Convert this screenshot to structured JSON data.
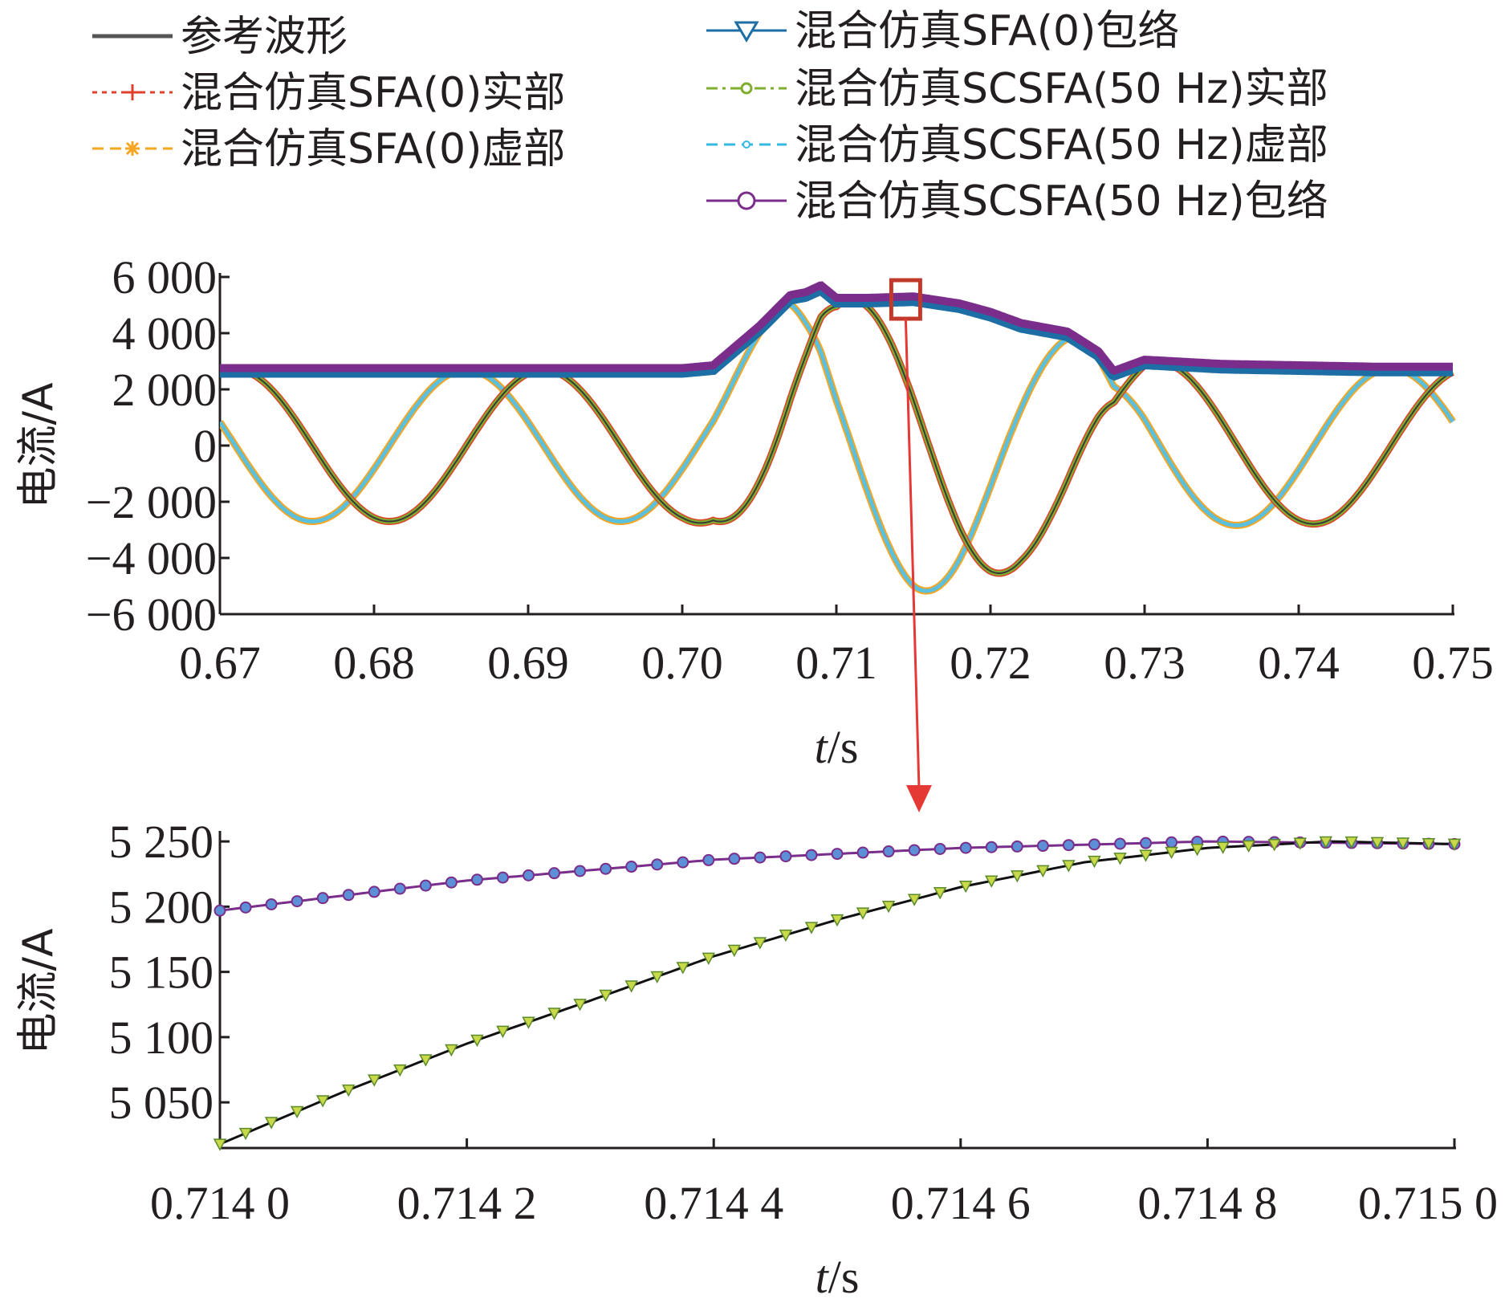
{
  "legend": [
    {
      "label": "参考波形",
      "color": "#555555",
      "marker": "none",
      "dash": "solid"
    },
    {
      "label": "混合仿真SFA(0)实部",
      "color": "#e0402a",
      "marker": "plus",
      "dash": "dotted"
    },
    {
      "label": "混合仿真SFA(0)虚部",
      "color": "#f5a623",
      "marker": "asterisk",
      "dash": "dashed"
    },
    {
      "label": "混合仿真SFA(0)包络",
      "color": "#1c6ea4",
      "marker": "triangle-down",
      "dash": "solid"
    },
    {
      "label": "混合仿真SCSFA(50 Hz)实部",
      "color": "#7fae2e",
      "marker": "circle-small",
      "dash": "dashdot"
    },
    {
      "label": "混合仿真SCSFA(50 Hz)虚部",
      "color": "#35b9e0",
      "marker": "dot",
      "dash": "dashed"
    },
    {
      "label": "混合仿真SCSFA(50 Hz)包络",
      "color": "#7b2d8b",
      "marker": "circle",
      "dash": "solid"
    }
  ],
  "colors": {
    "reference": "#3a3a3a",
    "real": "#7fae2e",
    "real_border": "#e0402a",
    "imag": "#5bc0de",
    "imag_border": "#f5a623",
    "env_sfa": "#1c6ea4",
    "env_scsfa": "#7b2d8b",
    "zoom_box": "#c0392b",
    "arrow": "#e53935"
  },
  "chart_data": [
    {
      "type": "line",
      "xlabel_italic": "t",
      "xlabel_rest": "/s",
      "ylabel": "电流/A",
      "xlim": [
        0.67,
        0.75
      ],
      "ylim": [
        -6000,
        6000
      ],
      "xticks": [
        0.67,
        0.68,
        0.69,
        0.7,
        0.71,
        0.72,
        0.73,
        0.74,
        0.75
      ],
      "xtick_labels": [
        "0.67",
        "0.68",
        "0.69",
        "0.70",
        "0.71",
        "0.72",
        "0.73",
        "0.74",
        "0.75"
      ],
      "yticks": [
        6000,
        4000,
        2000,
        0,
        -2000,
        -4000,
        -6000
      ],
      "ytick_labels": [
        "6 000",
        "4 000",
        "2 000",
        "0",
        "−2 000",
        "−4 000",
        "−6 000"
      ],
      "frequency_hz": 50,
      "series": [
        {
          "name": "参考波形",
          "role": "reference"
        },
        {
          "name": "混合仿真SFA(0)实部",
          "role": "real"
        },
        {
          "name": "混合仿真SFA(0)虚部",
          "role": "imag"
        },
        {
          "name": "混合仿真SFA(0)包络",
          "role": "env_sfa"
        },
        {
          "name": "混合仿真SCSFA(50 Hz)实部",
          "role": "real"
        },
        {
          "name": "混合仿真SCSFA(50 Hz)虚部",
          "role": "imag"
        },
        {
          "name": "混合仿真SCSFA(50 Hz)包络",
          "role": "env_scsfa"
        }
      ],
      "envelope": {
        "t": [
          0.67,
          0.7,
          0.702,
          0.705,
          0.707,
          0.708,
          0.709,
          0.71,
          0.712,
          0.715,
          0.718,
          0.72,
          0.722,
          0.725,
          0.727,
          0.728,
          0.73,
          0.735,
          0.74,
          0.745,
          0.75
        ],
        "amp": [
          2700,
          2700,
          2800,
          4200,
          5300,
          5400,
          5650,
          5200,
          5200,
          5250,
          5000,
          4700,
          4300,
          4000,
          3300,
          2600,
          3000,
          2850,
          2800,
          2750,
          2750
        ]
      },
      "phase_offset_s": 0.691
    },
    {
      "type": "line",
      "xlabel_italic": "t",
      "xlabel_rest": "/s",
      "ylabel": "电流/A",
      "xlim": [
        0.714,
        0.715
      ],
      "ylim": [
        5015,
        5255
      ],
      "xticks": [
        0.714,
        0.7142,
        0.7144,
        0.7146,
        0.7148,
        0.715
      ],
      "xtick_labels": [
        "0.714 0",
        "0.714 2",
        "0.714 4",
        "0.714 6",
        "0.714 8",
        "0.715 0"
      ],
      "yticks": [
        5250,
        5200,
        5150,
        5100,
        5050
      ],
      "ytick_labels": [
        "5 250",
        "5 200",
        "5 150",
        "5 100",
        "5 050"
      ],
      "series": [
        {
          "name": "混合仿真SCSFA(50 Hz)包络",
          "x": [
            0.714,
            0.7142,
            0.7144,
            0.7146,
            0.7148,
            0.715
          ],
          "y": [
            5197,
            5220,
            5236,
            5245,
            5250,
            5248
          ]
        },
        {
          "name": "参考波形",
          "x": [
            0.714,
            0.7141,
            0.7142,
            0.7143,
            0.7144,
            0.7145,
            0.7146,
            0.7147,
            0.7148,
            0.7149,
            0.715
          ],
          "y": [
            5018,
            5058,
            5095,
            5128,
            5162,
            5190,
            5215,
            5234,
            5245,
            5250,
            5248
          ]
        }
      ]
    }
  ]
}
